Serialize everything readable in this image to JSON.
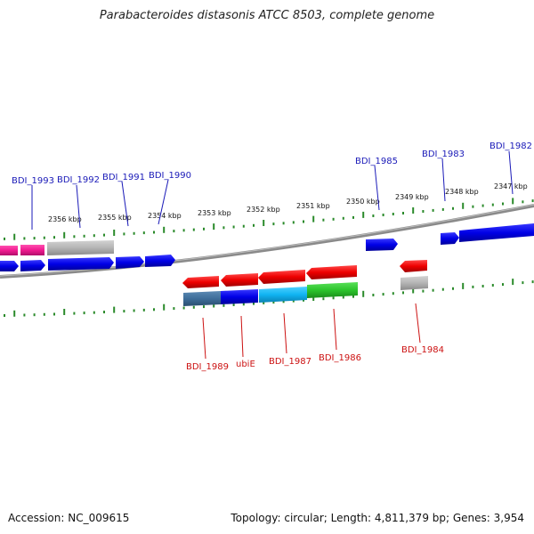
{
  "title": "Parabacteroides distasonis ATCC 8503, complete genome",
  "footer": {
    "accession": "Accession: NC_009615",
    "summary": "Topology: circular; Length: 4,811,379 bp; Genes: 3,954"
  },
  "colors": {
    "forward_label": "#1a1ab8",
    "reverse_label": "#cc1111",
    "tick": "#2a8a2a",
    "backbone": "#7a7a7a"
  },
  "scale_labels": [
    "2356 kbp",
    "2355 kbp",
    "2354 kbp",
    "2353 kbp",
    "2352 kbp",
    "2351 kbp",
    "2350 kbp",
    "2349 kbp",
    "2348 kbp",
    "2347 kbp"
  ],
  "forward_genes": [
    "BDI_1993",
    "BDI_1992",
    "BDI_1991",
    "BDI_1990",
    "BDI_1985",
    "BDI_1983",
    "BDI_1982"
  ],
  "reverse_genes": [
    "BDI_1989",
    "ubiE",
    "BDI_1987",
    "BDI_1986",
    "BDI_1984"
  ]
}
